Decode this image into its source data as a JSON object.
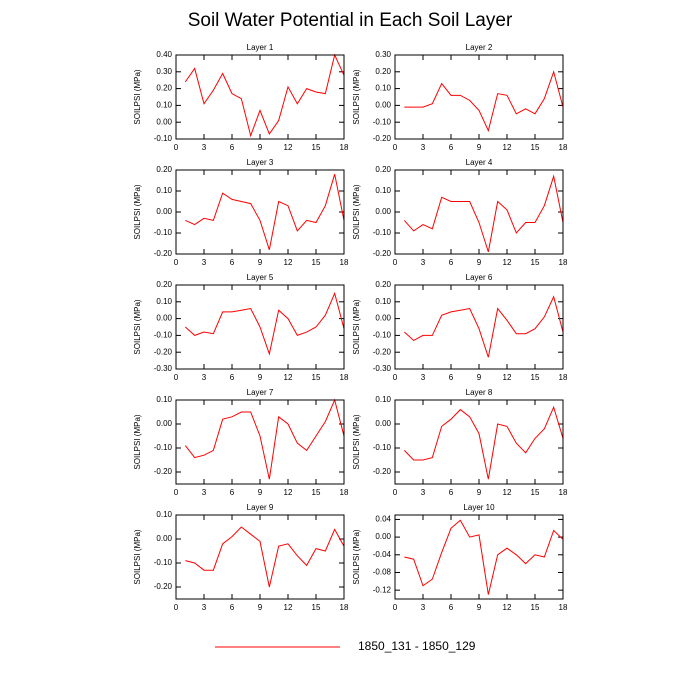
{
  "title": "Soil Water Potential in Each Soil Layer",
  "legend": {
    "name": "1850_131 - 1850_129",
    "color": "#ff0000"
  },
  "chart_data": [
    {
      "type": "line",
      "title": "Layer 1",
      "y_label": "SOILPSI  (MPa)",
      "x": [
        1,
        2,
        3,
        4,
        5,
        6,
        7,
        8,
        9,
        10,
        11,
        12,
        13,
        14,
        15,
        16,
        17,
        18
      ],
      "xlim": [
        0,
        18
      ],
      "xticks": [
        0,
        3,
        6,
        9,
        12,
        15,
        18
      ],
      "ylim": [
        -0.1,
        0.4
      ],
      "yticks": [
        {
          "value": -0.1,
          "label": "-0.10"
        },
        {
          "value": 0,
          "label": "0.00"
        },
        {
          "value": 0.1,
          "label": "0.10"
        },
        {
          "value": 0.2,
          "label": "0.20"
        },
        {
          "value": 0.3,
          "label": "0.30"
        },
        {
          "value": 0.4,
          "label": "0.40"
        }
      ],
      "series": [
        {
          "color": "#ff0000",
          "values": [
            0.24,
            0.32,
            0.11,
            0.19,
            0.29,
            0.17,
            0.14,
            -0.08,
            0.07,
            -0.07,
            0.01,
            0.21,
            0.11,
            0.2,
            0.18,
            0.17,
            0.4,
            0.28
          ]
        }
      ]
    },
    {
      "type": "line",
      "title": "Layer 2",
      "y_label": "SOILPSI  (MPa)",
      "x": [
        1,
        2,
        3,
        4,
        5,
        6,
        7,
        8,
        9,
        10,
        11,
        12,
        13,
        14,
        15,
        16,
        17,
        18
      ],
      "xlim": [
        0,
        18
      ],
      "xticks": [
        0,
        3,
        6,
        9,
        12,
        15,
        18
      ],
      "ylim": [
        -0.2,
        0.3
      ],
      "yticks": [
        {
          "value": -0.2,
          "label": "-0.20"
        },
        {
          "value": -0.1,
          "label": "-0.10"
        },
        {
          "value": 0,
          "label": "0.00"
        },
        {
          "value": 0.1,
          "label": "0.10"
        },
        {
          "value": 0.2,
          "label": "0.20"
        },
        {
          "value": 0.3,
          "label": "0.30"
        }
      ],
      "series": [
        {
          "color": "#ff0000",
          "values": [
            -0.01,
            -0.01,
            -0.01,
            0.01,
            0.13,
            0.06,
            0.06,
            0.03,
            -0.03,
            -0.15,
            0.07,
            0.06,
            -0.05,
            -0.02,
            -0.05,
            0.04,
            0.2,
            -0.01
          ]
        }
      ]
    },
    {
      "type": "line",
      "title": "Layer 3",
      "y_label": "SOILPSI  (MPa)",
      "x": [
        1,
        2,
        3,
        4,
        5,
        6,
        7,
        8,
        9,
        10,
        11,
        12,
        13,
        14,
        15,
        16,
        17,
        18
      ],
      "xlim": [
        0,
        18
      ],
      "xticks": [
        0,
        3,
        6,
        9,
        12,
        15,
        18
      ],
      "ylim": [
        -0.2,
        0.2
      ],
      "yticks": [
        {
          "value": -0.2,
          "label": "-0.20"
        },
        {
          "value": -0.1,
          "label": "-0.10"
        },
        {
          "value": 0,
          "label": "0.00"
        },
        {
          "value": 0.1,
          "label": "0.10"
        },
        {
          "value": 0.2,
          "label": "0.20"
        }
      ],
      "series": [
        {
          "color": "#ff0000",
          "values": [
            -0.04,
            -0.06,
            -0.03,
            -0.04,
            0.09,
            0.06,
            0.05,
            0.04,
            -0.04,
            -0.18,
            0.05,
            0.03,
            -0.09,
            -0.04,
            -0.05,
            0.03,
            0.18,
            -0.04
          ]
        }
      ]
    },
    {
      "type": "line",
      "title": "Layer 4",
      "y_label": "SOILPSI  (MPa)",
      "x": [
        1,
        2,
        3,
        4,
        5,
        6,
        7,
        8,
        9,
        10,
        11,
        12,
        13,
        14,
        15,
        16,
        17,
        18
      ],
      "xlim": [
        0,
        18
      ],
      "xticks": [
        0,
        3,
        6,
        9,
        12,
        15,
        18
      ],
      "ylim": [
        -0.2,
        0.2
      ],
      "yticks": [
        {
          "value": -0.2,
          "label": "-0.20"
        },
        {
          "value": -0.1,
          "label": "-0.10"
        },
        {
          "value": 0,
          "label": "0.00"
        },
        {
          "value": 0.1,
          "label": "0.10"
        },
        {
          "value": 0.2,
          "label": "0.20"
        }
      ],
      "series": [
        {
          "color": "#ff0000",
          "values": [
            -0.04,
            -0.09,
            -0.06,
            -0.08,
            0.07,
            0.05,
            0.05,
            0.05,
            -0.05,
            -0.19,
            0.05,
            0.01,
            -0.1,
            -0.05,
            -0.05,
            0.03,
            0.17,
            -0.05
          ]
        }
      ]
    },
    {
      "type": "line",
      "title": "Layer 5",
      "y_label": "SOILPSI  (MPa)",
      "x": [
        1,
        2,
        3,
        4,
        5,
        6,
        7,
        8,
        9,
        10,
        11,
        12,
        13,
        14,
        15,
        16,
        17,
        18
      ],
      "xlim": [
        0,
        18
      ],
      "xticks": [
        0,
        3,
        6,
        9,
        12,
        15,
        18
      ],
      "ylim": [
        -0.3,
        0.2
      ],
      "yticks": [
        {
          "value": -0.3,
          "label": "-0.30"
        },
        {
          "value": -0.2,
          "label": "-0.20"
        },
        {
          "value": -0.1,
          "label": "-0.10"
        },
        {
          "value": 0,
          "label": "0.00"
        },
        {
          "value": 0.1,
          "label": "0.10"
        },
        {
          "value": 0.2,
          "label": "0.20"
        }
      ],
      "series": [
        {
          "color": "#ff0000",
          "values": [
            -0.05,
            -0.1,
            -0.08,
            -0.09,
            0.04,
            0.04,
            0.05,
            0.06,
            -0.05,
            -0.21,
            0.05,
            0,
            -0.1,
            -0.08,
            -0.05,
            0.02,
            0.15,
            -0.06
          ]
        }
      ]
    },
    {
      "type": "line",
      "title": "Layer 6",
      "y_label": "SOILPSI  (MPa)",
      "x": [
        1,
        2,
        3,
        4,
        5,
        6,
        7,
        8,
        9,
        10,
        11,
        12,
        13,
        14,
        15,
        16,
        17,
        18
      ],
      "xlim": [
        0,
        18
      ],
      "xticks": [
        0,
        3,
        6,
        9,
        12,
        15,
        18
      ],
      "ylim": [
        -0.3,
        0.2
      ],
      "yticks": [
        {
          "value": -0.3,
          "label": "-0.30"
        },
        {
          "value": -0.2,
          "label": "-0.20"
        },
        {
          "value": -0.1,
          "label": "-0.10"
        },
        {
          "value": 0,
          "label": "0.00"
        },
        {
          "value": 0.1,
          "label": "0.10"
        },
        {
          "value": 0.2,
          "label": "0.20"
        }
      ],
      "series": [
        {
          "color": "#ff0000",
          "values": [
            -0.08,
            -0.13,
            -0.1,
            -0.1,
            0.02,
            0.04,
            0.05,
            0.06,
            -0.06,
            -0.23,
            0.06,
            -0.01,
            -0.09,
            -0.09,
            -0.06,
            0.01,
            0.13,
            -0.08
          ]
        }
      ]
    },
    {
      "type": "line",
      "title": "Layer 7",
      "y_label": "SOILPSI  (MPa)",
      "x": [
        1,
        2,
        3,
        4,
        5,
        6,
        7,
        8,
        9,
        10,
        11,
        12,
        13,
        14,
        15,
        16,
        17,
        18
      ],
      "xlim": [
        0,
        18
      ],
      "xticks": [
        0,
        3,
        6,
        9,
        12,
        15,
        18
      ],
      "ylim": [
        -0.25,
        0.1
      ],
      "yticks": [
        {
          "value": -0.2,
          "label": "-0.20"
        },
        {
          "value": -0.1,
          "label": "-0.10"
        },
        {
          "value": 0,
          "label": "0.00"
        },
        {
          "value": 0.1,
          "label": "0.10"
        }
      ],
      "series": [
        {
          "color": "#ff0000",
          "values": [
            -0.09,
            -0.14,
            -0.13,
            -0.11,
            0.02,
            0.03,
            0.05,
            0.05,
            -0.05,
            -0.23,
            0.03,
            0,
            -0.08,
            -0.11,
            -0.05,
            0.01,
            0.1,
            -0.05
          ]
        }
      ]
    },
    {
      "type": "line",
      "title": "Layer 8",
      "y_label": "SOILPSI  (MPa)",
      "x": [
        1,
        2,
        3,
        4,
        5,
        6,
        7,
        8,
        9,
        10,
        11,
        12,
        13,
        14,
        15,
        16,
        17,
        18
      ],
      "xlim": [
        0,
        18
      ],
      "xticks": [
        0,
        3,
        6,
        9,
        12,
        15,
        18
      ],
      "ylim": [
        -0.25,
        0.1
      ],
      "yticks": [
        {
          "value": -0.2,
          "label": "-0.20"
        },
        {
          "value": -0.1,
          "label": "-0.10"
        },
        {
          "value": 0,
          "label": "0.00"
        },
        {
          "value": 0.1,
          "label": "0.10"
        }
      ],
      "series": [
        {
          "color": "#ff0000",
          "values": [
            -0.11,
            -0.15,
            -0.15,
            -0.14,
            -0.01,
            0.02,
            0.06,
            0.03,
            -0.04,
            -0.23,
            0,
            -0.01,
            -0.08,
            -0.12,
            -0.06,
            -0.02,
            0.07,
            -0.06
          ]
        }
      ]
    },
    {
      "type": "line",
      "title": "Layer 9",
      "y_label": "SOILPSI  (MPa)",
      "x": [
        1,
        2,
        3,
        4,
        5,
        6,
        7,
        8,
        9,
        10,
        11,
        12,
        13,
        14,
        15,
        16,
        17,
        18
      ],
      "xlim": [
        0,
        18
      ],
      "xticks": [
        0,
        3,
        6,
        9,
        12,
        15,
        18
      ],
      "ylim": [
        -0.25,
        0.1
      ],
      "yticks": [
        {
          "value": -0.2,
          "label": "-0.20"
        },
        {
          "value": -0.1,
          "label": "-0.10"
        },
        {
          "value": 0,
          "label": "0.00"
        },
        {
          "value": 0.1,
          "label": "0.10"
        }
      ],
      "series": [
        {
          "color": "#ff0000",
          "values": [
            -0.09,
            -0.1,
            -0.13,
            -0.13,
            -0.02,
            0.01,
            0.05,
            0.02,
            -0.01,
            -0.2,
            -0.03,
            -0.02,
            -0.07,
            -0.11,
            -0.04,
            -0.05,
            0.04,
            -0.03
          ]
        }
      ]
    },
    {
      "type": "line",
      "title": "Layer 10",
      "y_label": "SOILPSI  (MPa)",
      "x": [
        1,
        2,
        3,
        4,
        5,
        6,
        7,
        8,
        9,
        10,
        11,
        12,
        13,
        14,
        15,
        16,
        17,
        18
      ],
      "xlim": [
        0,
        18
      ],
      "xticks": [
        0,
        3,
        6,
        9,
        12,
        15,
        18
      ],
      "ylim": [
        -0.14,
        0.05
      ],
      "yticks": [
        -0.12,
        -0.08,
        -0.04,
        {
          "value": 0,
          "label": "0.00"
        },
        0.04
      ],
      "series": [
        {
          "color": "#ff0000",
          "values": [
            -0.045,
            -0.05,
            -0.11,
            -0.095,
            -0.035,
            0.02,
            0.038,
            0,
            0.005,
            -0.13,
            -0.04,
            -0.025,
            -0.04,
            -0.06,
            -0.04,
            -0.045,
            0.015,
            -0.005
          ]
        }
      ]
    }
  ]
}
